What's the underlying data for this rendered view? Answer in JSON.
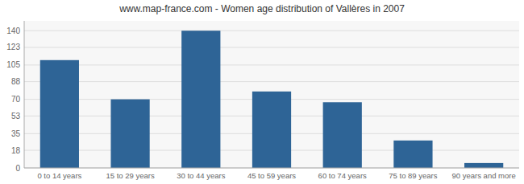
{
  "chart_data": {
    "type": "bar",
    "title": "www.map-france.com - Women age distribution of Vallères in 2007",
    "categories": [
      "0 to 14 years",
      "15 to 29 years",
      "30 to 44 years",
      "45 to 59 years",
      "60 to 74 years",
      "75 to 89 years",
      "90 years and more"
    ],
    "values": [
      110,
      70,
      140,
      78,
      67,
      28,
      5
    ],
    "color": "#2e6496",
    "ylim": [
      0,
      150
    ],
    "yticks": [
      0,
      18,
      35,
      53,
      70,
      88,
      105,
      123,
      140
    ],
    "grid": true
  }
}
